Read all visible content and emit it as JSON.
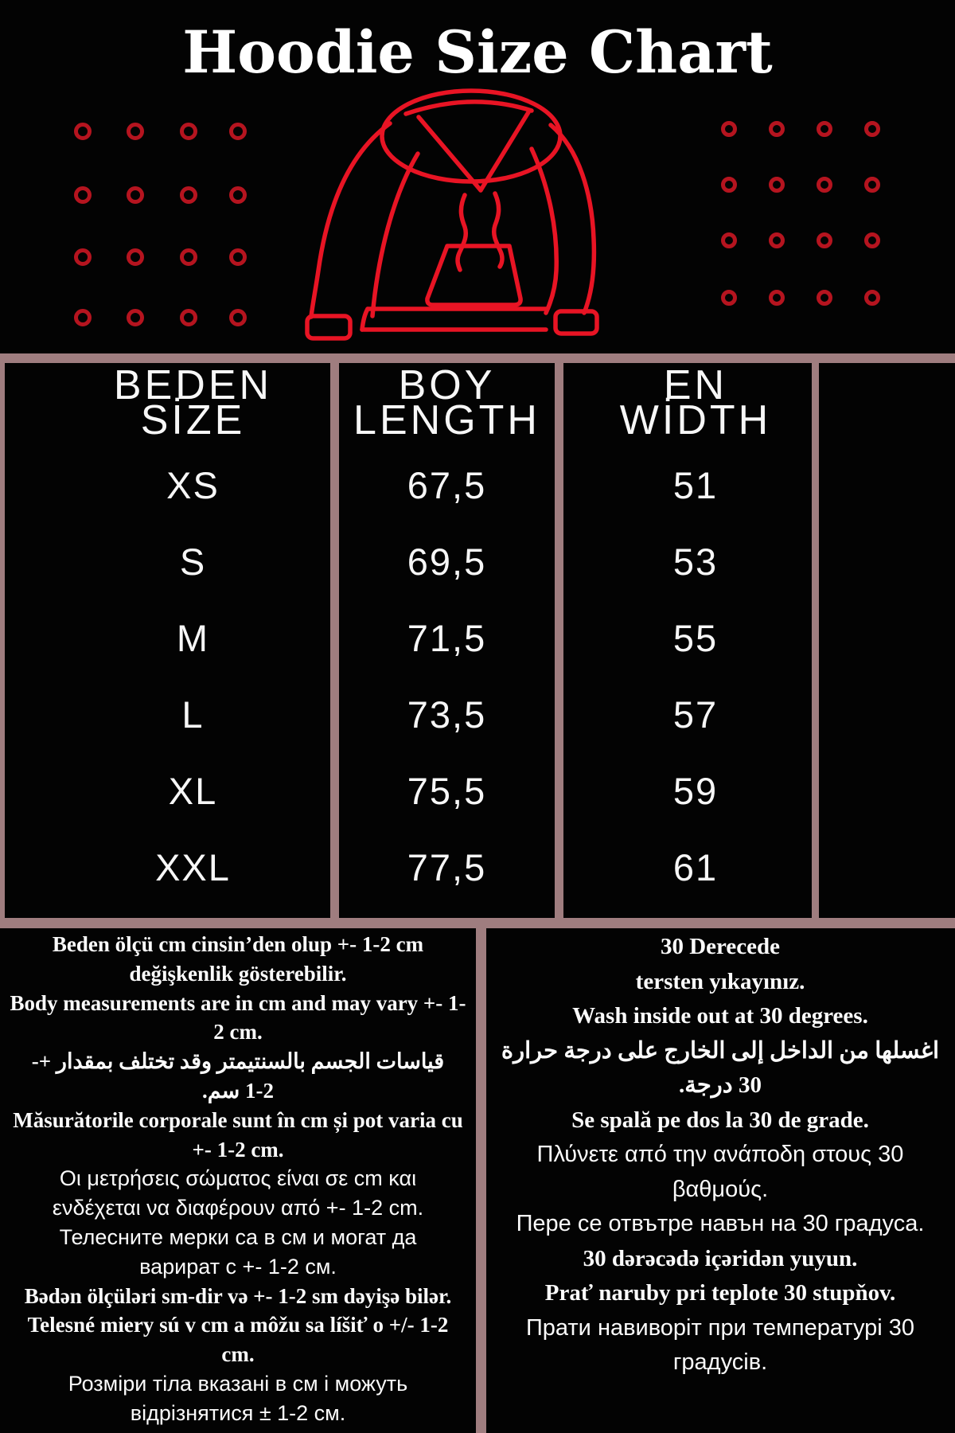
{
  "page": {
    "title": "Hoodie Size Chart"
  },
  "colors": {
    "background": "#030303",
    "divider": "#9f7d7f",
    "hoodie_red": "#e81424",
    "grommet_red": "#b5141f",
    "text": "#fbfbfb"
  },
  "chart_data": {
    "type": "table",
    "title": "Hoodie Size Chart",
    "columns": [
      "BEDEN SİZE",
      "BOY LENGTH",
      "EN WİDTH"
    ],
    "rows": [
      [
        "XS",
        "67,5",
        "51"
      ],
      [
        "S",
        "69,5",
        "53"
      ],
      [
        "M",
        "71,5",
        "55"
      ],
      [
        "L",
        "73,5",
        "57"
      ],
      [
        "XL",
        "75,5",
        "59"
      ],
      [
        "XXL",
        "77,5",
        "61"
      ]
    ],
    "units": "cm",
    "layout_hints": "black background, dusty-rose grid dividers, thin white sans text, empty fourth column"
  },
  "table": {
    "headers": [
      {
        "line1": "BEDEN",
        "line2": "SİZE"
      },
      {
        "line1": "BOY",
        "line2": "LENGTH"
      },
      {
        "line1": "EN",
        "line2": "WİDTH"
      }
    ],
    "rows": [
      {
        "size": "XS",
        "length": "67,5",
        "width": "51"
      },
      {
        "size": "S",
        "length": "69,5",
        "width": "53"
      },
      {
        "size": "M",
        "length": "71,5",
        "width": "55"
      },
      {
        "size": "L",
        "length": "73,5",
        "width": "57"
      },
      {
        "size": "XL",
        "length": "75,5",
        "width": "59"
      },
      {
        "size": "XXL",
        "length": "77,5",
        "width": "61"
      }
    ]
  },
  "notes": {
    "left": {
      "lines": [
        {
          "t": "Beden ölçü cm cinsin’den olup +- 1-2 cm",
          "f": "serif"
        },
        {
          "t": "değişkenlik gösterebilir.",
          "f": "serif"
        },
        {
          "t": "Body measurements are in cm and may vary +- 1-",
          "f": "serif"
        },
        {
          "t": "2 cm.",
          "f": "serif"
        },
        {
          "t": "قياسات الجسم بالسنتيمتر وقد تختلف بمقدار +-",
          "f": "serif",
          "rtl": true
        },
        {
          "t": "1-2 سم.",
          "f": "serif",
          "rtl": true
        },
        {
          "t": "Măsurătorile corporale sunt în cm și pot varia cu",
          "f": "serif"
        },
        {
          "t": "+- 1-2 cm.",
          "f": "serif"
        },
        {
          "t": "Οι μετρήσεις σώματος είναι σε cm και",
          "f": "sans"
        },
        {
          "t": "ενδέχεται να διαφέρουν από +- 1-2 cm.",
          "f": "sans"
        },
        {
          "t": "Телесните мерки са в см и могат да",
          "f": "sans"
        },
        {
          "t": "варират с +- 1-2 см.",
          "f": "sans"
        },
        {
          "t": "Bədən ölçüləri sm-dir və +- 1-2 sm dəyişə bilər.",
          "f": "serif"
        },
        {
          "t": "Telesné miery sú v cm a môžu sa líšiť o +/- 1-2",
          "f": "serif"
        },
        {
          "t": "cm.",
          "f": "serif"
        },
        {
          "t": "Розміри тіла вказані в см і можуть",
          "f": "sans"
        },
        {
          "t": "відрізнятися ± 1-2 см.",
          "f": "sans"
        }
      ]
    },
    "right": {
      "lines": [
        {
          "t": "30 Derecede",
          "f": "serif"
        },
        {
          "t": "tersten yıkayınız.",
          "f": "serif"
        },
        {
          "t": "Wash inside out at 30 degrees.",
          "f": "serif"
        },
        {
          "t": "اغسلها من الداخل إلى الخارج على درجة حرارة",
          "f": "serif",
          "rtl": true
        },
        {
          "t": "30 درجة.",
          "f": "serif",
          "rtl": true
        },
        {
          "t": "Se spală pe dos la 30 de grade.",
          "f": "serif"
        },
        {
          "t": "Πλύνετε από την ανάποδη στους 30",
          "f": "sans"
        },
        {
          "t": "βαθμούς.",
          "f": "sans"
        },
        {
          "t": "Пере се отвътре навън на 30 градуса.",
          "f": "sans"
        },
        {
          "t": "30 dərəcədə içəridən yuyun.",
          "f": "serif"
        },
        {
          "t": "Prať naruby pri teplote 30 stupňov.",
          "f": "serif"
        },
        {
          "t": "Прати навиворіт при температурі 30",
          "f": "sans"
        },
        {
          "t": "градусів.",
          "f": "sans"
        }
      ]
    }
  },
  "decor": {
    "grommet_grid_left": {
      "cols": [
        104,
        170,
        237,
        299
      ],
      "rows": [
        165,
        245,
        323,
        399
      ],
      "outer": 22
    },
    "grommet_grid_right": {
      "cols": [
        916,
        976,
        1036,
        1096
      ],
      "rows": [
        162,
        232,
        302,
        374
      ],
      "outer": 20
    },
    "hoodie_icon": "red outline hoodie with drawstrings and kangaroo pocket"
  }
}
